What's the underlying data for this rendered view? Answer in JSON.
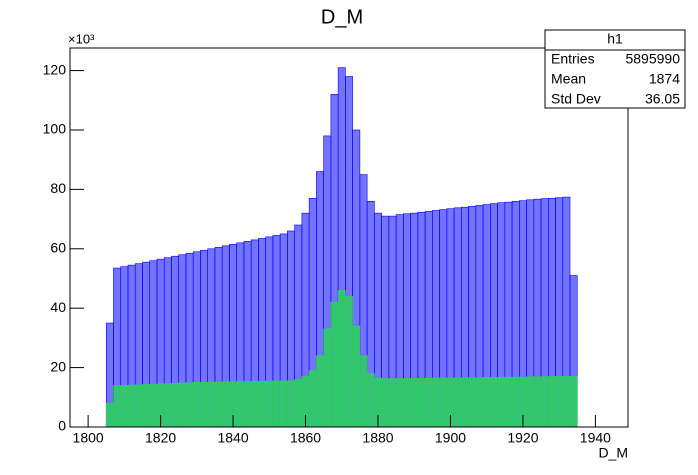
{
  "chart_data": {
    "type": "histogram",
    "title": "D_M",
    "x_label": "D_M",
    "y_multiplier": "×10³",
    "bins": [
      1805,
      1807,
      1809,
      1811,
      1813,
      1815,
      1817,
      1819,
      1821,
      1823,
      1825,
      1827,
      1829,
      1831,
      1833,
      1835,
      1837,
      1839,
      1841,
      1843,
      1845,
      1847,
      1849,
      1851,
      1853,
      1855,
      1857,
      1859,
      1861,
      1863,
      1865,
      1867,
      1869,
      1871,
      1873,
      1875,
      1877,
      1879,
      1881,
      1883,
      1885,
      1887,
      1889,
      1891,
      1893,
      1895,
      1897,
      1899,
      1901,
      1903,
      1905,
      1907,
      1909,
      1911,
      1913,
      1915,
      1917,
      1919,
      1921,
      1923,
      1925,
      1927,
      1929,
      1931,
      1933,
      1935
    ],
    "series": [
      {
        "color": "#0000ff",
        "values": [
          35,
          53.5,
          54,
          54.5,
          55,
          55.5,
          56,
          56.5,
          57,
          57.5,
          58,
          58.5,
          59,
          59.5,
          60,
          60.5,
          61,
          61.5,
          62,
          62.5,
          63,
          63.5,
          64,
          64.5,
          65,
          66,
          68,
          72,
          77,
          86,
          98,
          112,
          121,
          118,
          100,
          85,
          76,
          72,
          71,
          71,
          71.5,
          71.8,
          72,
          72.3,
          72.6,
          72.9,
          73.2,
          73.5,
          73.8,
          74,
          74.3,
          74.6,
          74.9,
          75.2,
          75.5,
          75.7,
          76,
          76.2,
          76.5,
          76.7,
          76.9,
          77,
          77.2,
          77.4,
          51
        ]
      },
      {
        "color": "#22dd44",
        "values": [
          8,
          14,
          14,
          14.1,
          14.2,
          14.3,
          14.4,
          14.5,
          14.6,
          14.7,
          14.8,
          14.9,
          15,
          15,
          15.1,
          15.1,
          15.2,
          15.2,
          15.3,
          15.3,
          15.4,
          15.4,
          15.5,
          15.5,
          15.5,
          15.5,
          16,
          17,
          19,
          24,
          33,
          42,
          46,
          44,
          34,
          24,
          18,
          16.5,
          16.3,
          16.3,
          16.3,
          16.3,
          16.4,
          16.4,
          16.4,
          16.5,
          16.5,
          16.5,
          16.5,
          16.6,
          16.6,
          16.6,
          16.7,
          16.7,
          16.7,
          16.8,
          16.8,
          16.8,
          16.9,
          16.9,
          16.9,
          17,
          17,
          17,
          17
        ]
      }
    ],
    "xlim": [
      1795,
      1949
    ],
    "ylim": [
      0,
      127.6
    ],
    "xticks": [
      1800,
      1820,
      1840,
      1860,
      1880,
      1900,
      1920,
      1940
    ],
    "yticks": [
      0,
      20,
      40,
      60,
      80,
      100,
      120
    ],
    "stats": {
      "name": "h1",
      "rows": [
        [
          "Entries",
          "5895990"
        ],
        [
          "Mean",
          "1874"
        ],
        [
          "Std Dev",
          "36.05"
        ]
      ]
    }
  }
}
